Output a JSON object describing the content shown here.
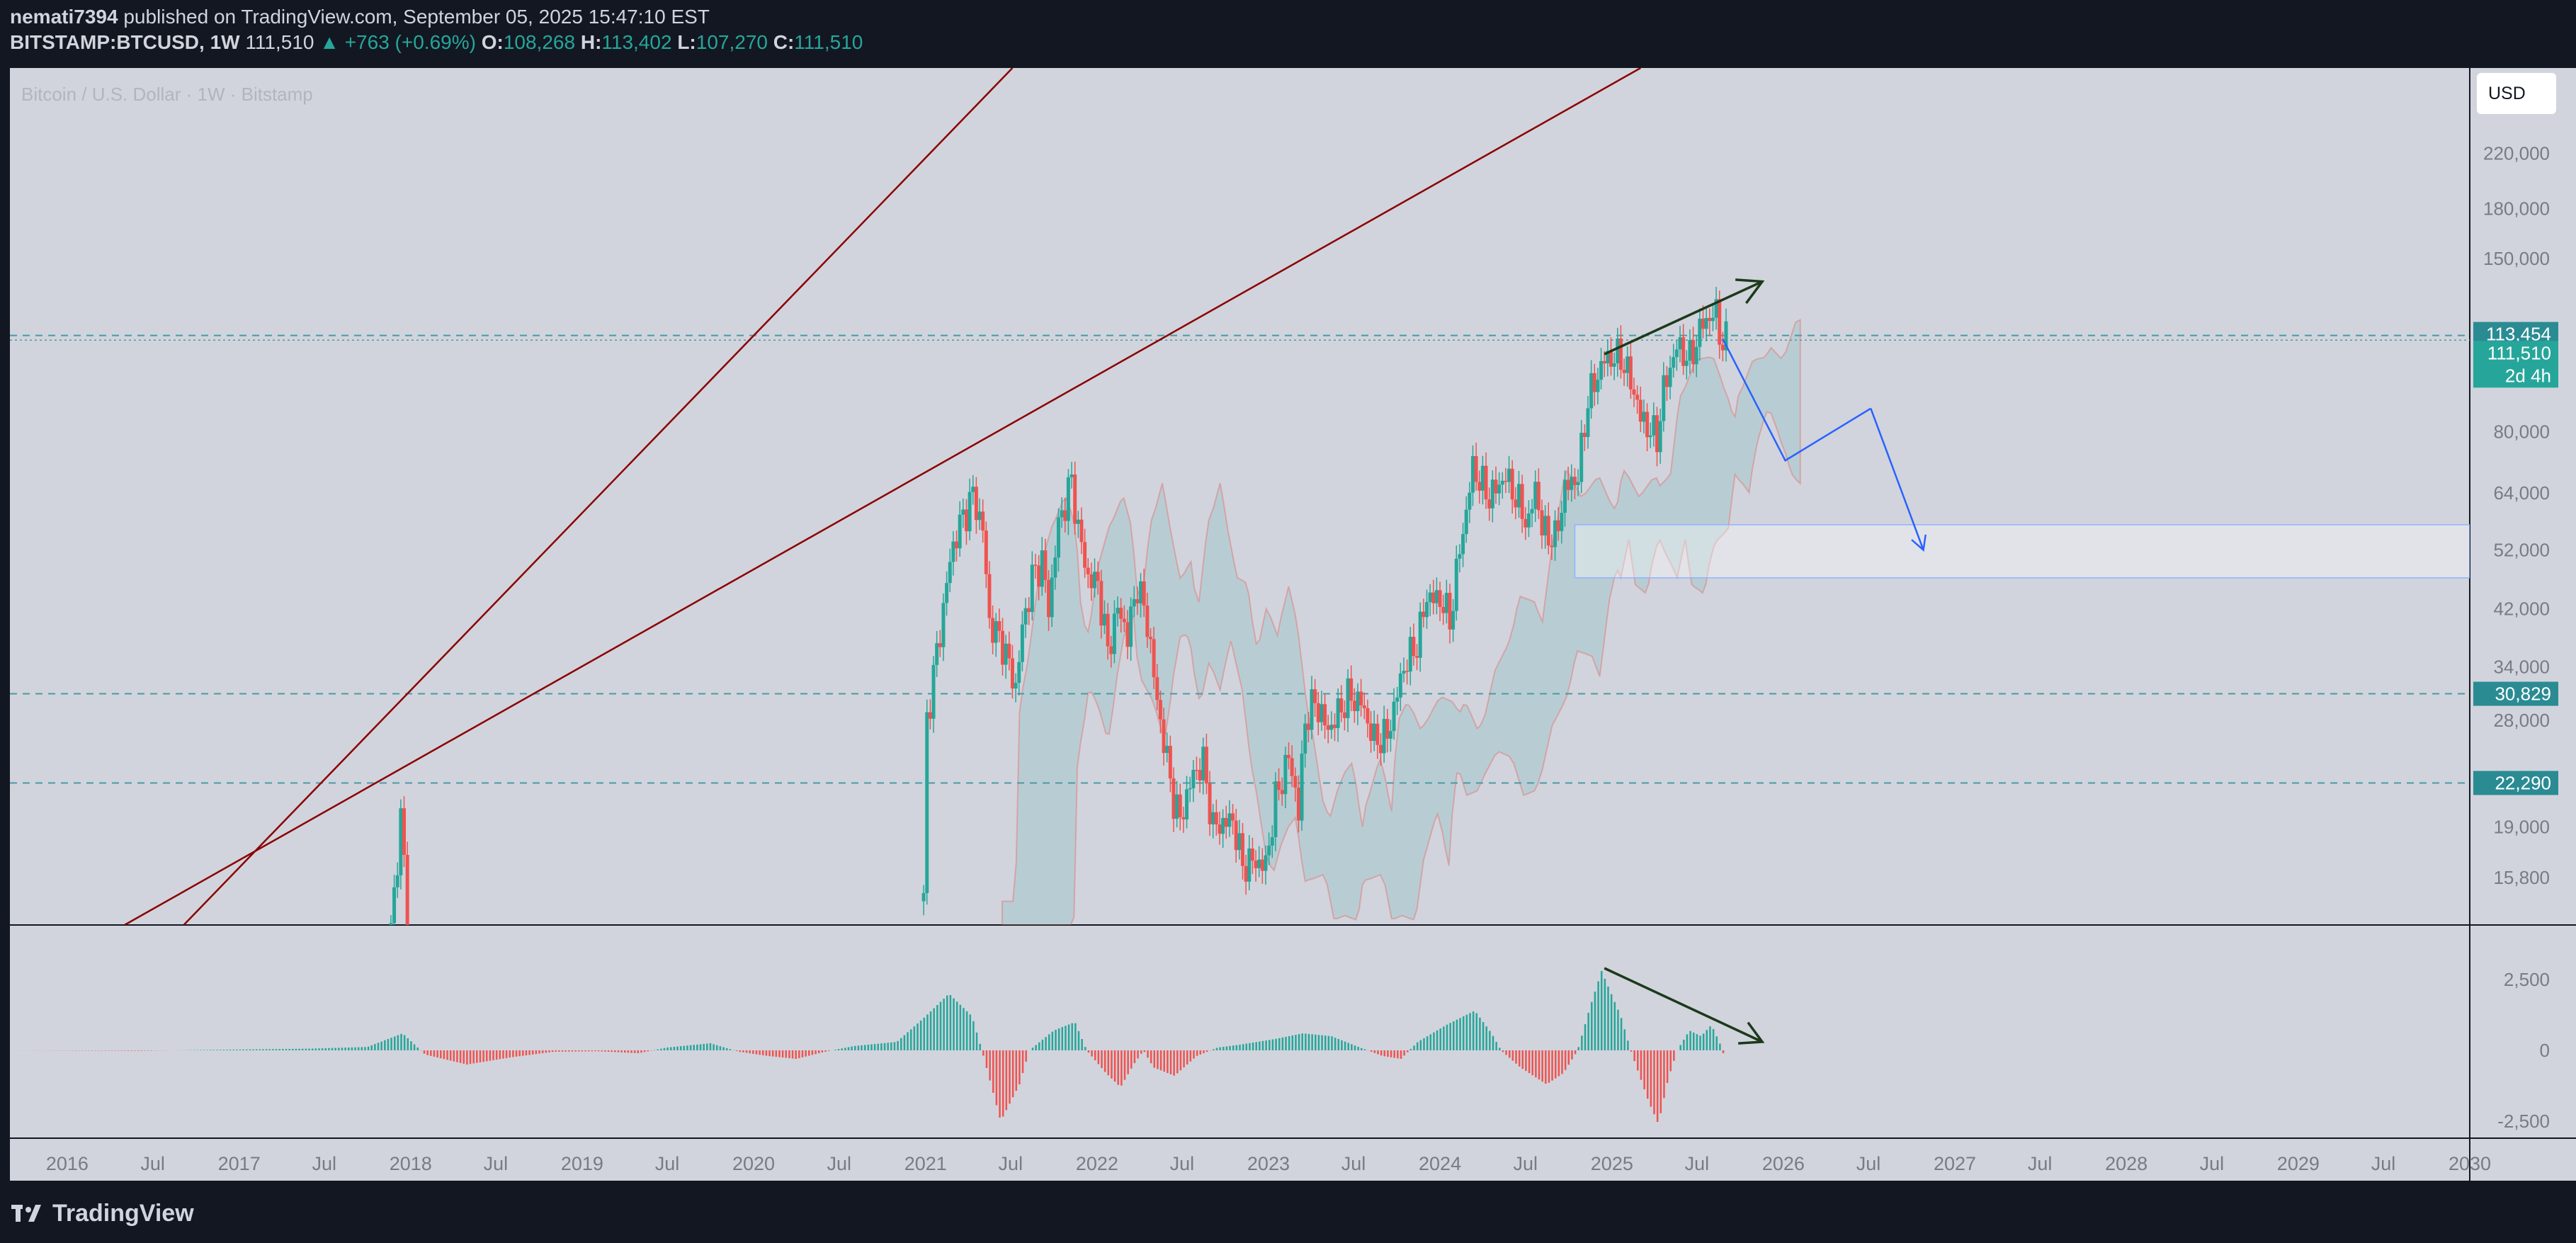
{
  "header": {
    "user": "nemati7394",
    "published": "published on TradingView.com, September 05, 2025 15:47:10 EST",
    "symbol": "BITSTAMP:BTCUSD,",
    "interval": "1W",
    "last": "111,510",
    "change": "+763 (+0.69%)",
    "open_label": "O:",
    "open": "108,268",
    "high_label": "H:",
    "high": "113,402",
    "low_label": "L:",
    "low": "107,270",
    "close_label": "C:",
    "close": "111,510"
  },
  "watermark": "Bitcoin / U.S. Dollar · 1W · Bitstamp",
  "currency_button": "USD",
  "footer": {
    "brand": "TradingView"
  },
  "colors": {
    "background": "#131722",
    "pane": "#d1d4dc",
    "up": "#26a69a",
    "down": "#ef5350",
    "trendline": "#8b0000",
    "divergence_arrow": "#1b3a1b",
    "projection": "#2962ff",
    "level_line": "#4a9aa6"
  },
  "chart_data": [
    {
      "type": "candlestick",
      "scale": "log",
      "x_tick_labels": [
        "2016",
        "Jul",
        "2017",
        "Jul",
        "2018",
        "Jul",
        "2019",
        "Jul",
        "2020",
        "Jul",
        "2021",
        "Jul",
        "2022",
        "Jul",
        "2023",
        "Jul",
        "2024",
        "Jul",
        "2025",
        "Jul",
        "2026",
        "Jul",
        "2027",
        "Jul",
        "2028",
        "Jul",
        "2029",
        "Jul",
        "2030"
      ],
      "x_range": [
        "2015-09-01",
        "2030-01-01"
      ],
      "y_tick_labels": [
        "220,000",
        "180,000",
        "150,000",
        "80,000",
        "64,000",
        "52,000",
        "42,000",
        "34,000",
        "28,000",
        "19,000",
        "15,800"
      ],
      "y_ticks": [
        220000,
        180000,
        150000,
        80000,
        64000,
        52000,
        42000,
        34000,
        28000,
        19000,
        15800
      ],
      "y_range": [
        13300,
        300000
      ],
      "price_badges": [
        {
          "label": "113,454",
          "value": 113454,
          "kind": "level"
        },
        {
          "label": "111,510",
          "value": 111510,
          "kind": "last"
        },
        {
          "label": "2d 4h",
          "kind": "countdown"
        },
        {
          "label": "30,829",
          "value": 30829,
          "kind": "level"
        },
        {
          "label": "22,290",
          "value": 22290,
          "kind": "level"
        }
      ],
      "horizontal_levels": [
        113454,
        30829,
        22290
      ],
      "weekly_close_path": [
        [
          "2017-11-20",
          13000
        ],
        [
          "2017-12-11",
          19600
        ],
        [
          "2017-12-25",
          14000
        ],
        [
          "2020-12-28",
          14500
        ],
        [
          "2021-01-04",
          28000
        ],
        [
          "2021-01-18",
          33000
        ],
        [
          "2021-02-08",
          42000
        ],
        [
          "2021-02-22",
          50000
        ],
        [
          "2021-03-15",
          57000
        ],
        [
          "2021-04-12",
          63500
        ],
        [
          "2021-05-03",
          56000
        ],
        [
          "2021-05-17",
          40000
        ],
        [
          "2021-06-14",
          37000
        ],
        [
          "2021-07-12",
          31500
        ],
        [
          "2021-07-26",
          39000
        ],
        [
          "2021-08-16",
          47000
        ],
        [
          "2021-09-06",
          50000
        ],
        [
          "2021-09-20",
          42000
        ],
        [
          "2021-10-11",
          57000
        ],
        [
          "2021-11-08",
          67000
        ],
        [
          "2021-11-22",
          56000
        ],
        [
          "2021-12-13",
          47000
        ],
        [
          "2022-01-03",
          46000
        ],
        [
          "2022-01-24",
          36000
        ],
        [
          "2022-02-14",
          42000
        ],
        [
          "2022-03-07",
          38000
        ],
        [
          "2022-03-28",
          46000
        ],
        [
          "2022-04-18",
          40000
        ],
        [
          "2022-05-09",
          30000
        ],
        [
          "2022-06-13",
          21000
        ],
        [
          "2022-06-27",
          19500
        ],
        [
          "2022-07-25",
          23000
        ],
        [
          "2022-08-15",
          24000
        ],
        [
          "2022-09-05",
          19000
        ],
        [
          "2022-10-17",
          19500
        ],
        [
          "2022-11-07",
          16500
        ],
        [
          "2022-11-28",
          16800
        ],
        [
          "2022-12-26",
          16500
        ],
        [
          "2023-01-16",
          21000
        ],
        [
          "2023-02-13",
          24500
        ],
        [
          "2023-03-06",
          20000
        ],
        [
          "2023-03-20",
          28000
        ],
        [
          "2023-04-10",
          30000
        ],
        [
          "2023-05-08",
          27000
        ],
        [
          "2023-06-19",
          30500
        ],
        [
          "2023-07-17",
          29900
        ],
        [
          "2023-08-14",
          26000
        ],
        [
          "2023-09-11",
          26500
        ],
        [
          "2023-10-16",
          34000
        ],
        [
          "2023-11-13",
          37000
        ],
        [
          "2023-12-04",
          44000
        ],
        [
          "2024-01-08",
          43000
        ],
        [
          "2024-01-22",
          40000
        ],
        [
          "2024-02-12",
          52000
        ],
        [
          "2024-03-11",
          70000
        ],
        [
          "2024-04-15",
          63000
        ],
        [
          "2024-05-20",
          68000
        ],
        [
          "2024-06-24",
          60000
        ],
        [
          "2024-07-08",
          57000
        ],
        [
          "2024-07-22",
          66000
        ],
        [
          "2024-08-05",
          56000
        ],
        [
          "2024-09-02",
          54000
        ],
        [
          "2024-09-23",
          65000
        ],
        [
          "2024-10-21",
          68000
        ],
        [
          "2024-11-11",
          90000
        ],
        [
          "2024-12-16",
          104000
        ],
        [
          "2025-01-20",
          105000
        ],
        [
          "2025-02-10",
          96000
        ],
        [
          "2025-03-03",
          84000
        ],
        [
          "2025-04-07",
          78000
        ],
        [
          "2025-04-21",
          93000
        ],
        [
          "2025-05-19",
          109000
        ],
        [
          "2025-06-16",
          104000
        ],
        [
          "2025-07-14",
          119000
        ],
        [
          "2025-08-11",
          123000
        ],
        [
          "2025-08-25",
          109000
        ],
        [
          "2025-09-01",
          111510
        ]
      ],
      "ichimoku_cloud_span": [
        "2021-06-14",
        "2026-02-09"
      ],
      "annotations": [
        {
          "kind": "trendline",
          "points": [
            [
              "2016-09-05",
              13300
            ],
            [
              "2021-07-05",
              300000
            ]
          ]
        },
        {
          "kind": "trendline",
          "points": [
            [
              "2016-05-02",
              13300
            ],
            [
              "2025-03-03",
              300000
            ]
          ]
        },
        {
          "kind": "arrow",
          "desc": "higher highs",
          "points": [
            [
              "2024-12-16",
              106000
            ],
            [
              "2025-11-17",
              138000
            ]
          ]
        },
        {
          "kind": "projection",
          "points": [
            [
              "2025-08-25",
              112000
            ],
            [
              "2026-01-05",
              72000
            ],
            [
              "2026-07-06",
              87000
            ],
            [
              "2026-10-26",
              52000
            ]
          ]
        },
        {
          "kind": "zone",
          "range_x": [
            "2024-10-14",
            "2030-01-01"
          ],
          "range_y": [
            47000,
            57000
          ]
        }
      ]
    },
    {
      "type": "bar",
      "indicator": "histogram",
      "y_tick_labels": [
        "2,500",
        "0",
        "-2,500"
      ],
      "y_ticks": [
        2500,
        0,
        -2500
      ],
      "y_range": [
        -3100,
        4400
      ],
      "x_range": [
        "2015-09-01",
        "2030-01-01"
      ],
      "series_points": [
        [
          "2015-09-01",
          0
        ],
        [
          "2016-06-01",
          -15
        ],
        [
          "2017-06-01",
          60
        ],
        [
          "2017-10-01",
          120
        ],
        [
          "2017-12-15",
          600
        ],
        [
          "2018-02-01",
          -150
        ],
        [
          "2018-05-01",
          -500
        ],
        [
          "2018-08-01",
          -250
        ],
        [
          "2018-11-01",
          -50
        ],
        [
          "2019-02-01",
          -30
        ],
        [
          "2019-05-01",
          -100
        ],
        [
          "2019-07-01",
          100
        ],
        [
          "2019-10-01",
          250
        ],
        [
          "2019-12-01",
          -50
        ],
        [
          "2020-02-01",
          -200
        ],
        [
          "2020-04-01",
          -300
        ],
        [
          "2020-06-01",
          -50
        ],
        [
          "2020-08-01",
          150
        ],
        [
          "2020-11-01",
          300
        ],
        [
          "2021-01-01",
          1200
        ],
        [
          "2021-02-20",
          2000
        ],
        [
          "2021-04-10",
          1200
        ],
        [
          "2021-05-01",
          0
        ],
        [
          "2021-06-10",
          -2500
        ],
        [
          "2021-07-20",
          -1200
        ],
        [
          "2021-08-10",
          0
        ],
        [
          "2021-10-01",
          700
        ],
        [
          "2021-11-15",
          1000
        ],
        [
          "2021-12-10",
          0
        ],
        [
          "2022-01-20",
          -800
        ],
        [
          "2022-02-20",
          -1300
        ],
        [
          "2022-03-20",
          -500
        ],
        [
          "2022-04-10",
          0
        ],
        [
          "2022-05-01",
          -600
        ],
        [
          "2022-06-15",
          -900
        ],
        [
          "2022-08-01",
          -200
        ],
        [
          "2022-09-15",
          100
        ],
        [
          "2022-11-01",
          200
        ],
        [
          "2023-01-15",
          400
        ],
        [
          "2023-03-15",
          600
        ],
        [
          "2023-05-15",
          500
        ],
        [
          "2023-07-15",
          100
        ],
        [
          "2023-09-01",
          -200
        ],
        [
          "2023-10-10",
          -300
        ],
        [
          "2023-11-15",
          300
        ],
        [
          "2024-01-15",
          900
        ],
        [
          "2024-03-15",
          1400
        ],
        [
          "2024-04-20",
          600
        ],
        [
          "2024-05-10",
          0
        ],
        [
          "2024-06-20",
          -600
        ],
        [
          "2024-08-15",
          -1200
        ],
        [
          "2024-09-20",
          -800
        ],
        [
          "2024-10-20",
          0
        ],
        [
          "2024-11-15",
          1500
        ],
        [
          "2024-12-10",
          2800
        ],
        [
          "2025-01-20",
          1200
        ],
        [
          "2025-02-10",
          0
        ],
        [
          "2025-03-20",
          -1800
        ],
        [
          "2025-04-10",
          -2600
        ],
        [
          "2025-05-01",
          -1000
        ],
        [
          "2025-05-20",
          0
        ],
        [
          "2025-06-15",
          700
        ],
        [
          "2025-07-10",
          500
        ],
        [
          "2025-08-01",
          900
        ],
        [
          "2025-08-20",
          200
        ],
        [
          "2025-09-01",
          -400
        ]
      ],
      "annotations": [
        {
          "kind": "arrow",
          "desc": "lower highs",
          "points": [
            [
              "2024-12-16",
              2900
            ],
            [
              "2025-11-17",
              300
            ]
          ]
        }
      ]
    }
  ]
}
